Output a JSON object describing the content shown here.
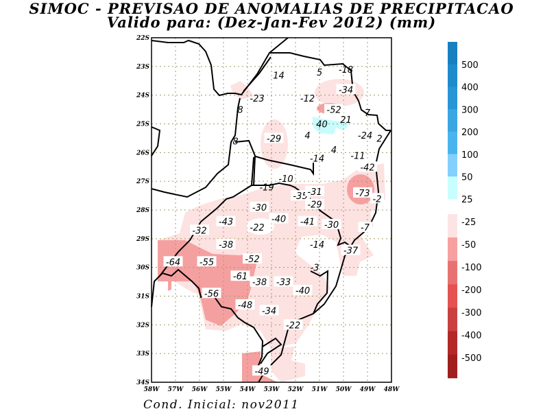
{
  "header": {
    "title": "SIMOC - PREVISAO DE ANOMALIAS DE PRECIPITACAO",
    "subtitle": "Valido para: (Dez-Jan-Fev 2012) (mm)"
  },
  "footer": {
    "initial_condition": "Cond. Inicial: nov2011"
  },
  "map": {
    "lat_ticks": [
      "22S",
      "23S",
      "24S",
      "25S",
      "26S",
      "27S",
      "28S",
      "29S",
      "30S",
      "31S",
      "32S",
      "33S",
      "34S"
    ],
    "lon_ticks": [
      "58W",
      "57W",
      "56W",
      "55W",
      "54W",
      "53W",
      "52W",
      "51W",
      "50W",
      "49W",
      "48W"
    ],
    "extent": {
      "lon": [
        -58,
        -48
      ],
      "lat": [
        -34,
        -22
      ]
    },
    "colors": {
      "light_pink": "#fde2e2",
      "pink": "#f5a0a0",
      "cyan": "#c8fcfc",
      "border": "#000000",
      "grid": "#a09a60"
    },
    "labels": [
      {
        "text": "14",
        "lon": -52.7,
        "lat": -23.3,
        "box": false
      },
      {
        "text": "5",
        "lon": -51.0,
        "lat": -23.2,
        "box": false
      },
      {
        "text": "-18",
        "lon": -49.9,
        "lat": -23.1,
        "box": false
      },
      {
        "text": "-34",
        "lon": -49.9,
        "lat": -23.8,
        "box": true
      },
      {
        "text": "-23",
        "lon": -53.6,
        "lat": -24.1,
        "box": false
      },
      {
        "text": "-12",
        "lon": -51.5,
        "lat": -24.1,
        "box": false
      },
      {
        "text": "-52",
        "lon": -50.4,
        "lat": -24.5,
        "box": true
      },
      {
        "text": "7",
        "lon": -49.0,
        "lat": -24.6,
        "box": false
      },
      {
        "text": "8",
        "lon": -54.3,
        "lat": -24.5,
        "box": false
      },
      {
        "text": "40",
        "lon": -50.9,
        "lat": -25.0,
        "box": false
      },
      {
        "text": "21",
        "lon": -49.9,
        "lat": -24.85,
        "box": false
      },
      {
        "text": "4",
        "lon": -51.5,
        "lat": -25.4,
        "box": false
      },
      {
        "text": "-29",
        "lon": -52.9,
        "lat": -25.5,
        "box": true
      },
      {
        "text": "-24",
        "lon": -49.1,
        "lat": -25.4,
        "box": true
      },
      {
        "text": "2",
        "lon": -48.5,
        "lat": -25.5,
        "box": false
      },
      {
        "text": "8",
        "lon": -54.5,
        "lat": -25.6,
        "box": false
      },
      {
        "text": "-14",
        "lon": -51.1,
        "lat": -26.2,
        "box": false
      },
      {
        "text": "4",
        "lon": -50.4,
        "lat": -25.9,
        "box": false
      },
      {
        "text": "-11",
        "lon": -49.4,
        "lat": -26.1,
        "box": false
      },
      {
        "text": "-42",
        "lon": -49.0,
        "lat": -26.5,
        "box": true
      },
      {
        "text": "-10",
        "lon": -52.4,
        "lat": -26.9,
        "box": false
      },
      {
        "text": "-19",
        "lon": -53.2,
        "lat": -27.2,
        "box": false
      },
      {
        "text": "-35",
        "lon": -51.8,
        "lat": -27.5,
        "box": true
      },
      {
        "text": "-31",
        "lon": -51.2,
        "lat": -27.35,
        "box": true
      },
      {
        "text": "-73",
        "lon": -49.2,
        "lat": -27.4,
        "box": true
      },
      {
        "text": "-2",
        "lon": -48.6,
        "lat": -27.6,
        "box": true
      },
      {
        "text": "-29",
        "lon": -51.2,
        "lat": -27.8,
        "box": true
      },
      {
        "text": "-30",
        "lon": -53.5,
        "lat": -27.9,
        "box": true
      },
      {
        "text": "-43",
        "lon": -54.9,
        "lat": -28.4,
        "box": true
      },
      {
        "text": "-40",
        "lon": -52.7,
        "lat": -28.3,
        "box": true
      },
      {
        "text": "-41",
        "lon": -51.5,
        "lat": -28.4,
        "box": true
      },
      {
        "text": "-30",
        "lon": -50.5,
        "lat": -28.5,
        "box": true
      },
      {
        "text": "-22",
        "lon": -53.6,
        "lat": -28.6,
        "box": true
      },
      {
        "text": "-7",
        "lon": -49.1,
        "lat": -28.6,
        "box": true
      },
      {
        "text": "-32",
        "lon": -56.0,
        "lat": -28.7,
        "box": true
      },
      {
        "text": "-38",
        "lon": -54.9,
        "lat": -29.2,
        "box": true
      },
      {
        "text": "-14",
        "lon": -51.1,
        "lat": -29.2,
        "box": false
      },
      {
        "text": "-37",
        "lon": -49.7,
        "lat": -29.4,
        "box": true
      },
      {
        "text": "-52",
        "lon": -53.8,
        "lat": -29.7,
        "box": true
      },
      {
        "text": "-64",
        "lon": -57.1,
        "lat": -29.8,
        "box": true
      },
      {
        "text": "-55",
        "lon": -55.7,
        "lat": -29.8,
        "box": true
      },
      {
        "text": "-3",
        "lon": -51.2,
        "lat": -30.0,
        "box": false
      },
      {
        "text": "-61",
        "lon": -54.3,
        "lat": -30.3,
        "box": true
      },
      {
        "text": "-38",
        "lon": -53.5,
        "lat": -30.5,
        "box": true
      },
      {
        "text": "-33",
        "lon": -52.5,
        "lat": -30.5,
        "box": true
      },
      {
        "text": "-40",
        "lon": -51.7,
        "lat": -30.8,
        "box": true
      },
      {
        "text": "-56",
        "lon": -55.5,
        "lat": -30.9,
        "box": true
      },
      {
        "text": "-48",
        "lon": -54.1,
        "lat": -31.3,
        "box": true
      },
      {
        "text": "-34",
        "lon": -53.1,
        "lat": -31.5,
        "box": true
      },
      {
        "text": "-22",
        "lon": -52.1,
        "lat": -32.0,
        "box": true
      },
      {
        "text": "-49",
        "lon": -53.4,
        "lat": -33.6,
        "box": true
      }
    ]
  },
  "legend": {
    "positive": {
      "labels": [
        "500",
        "400",
        "300",
        "200",
        "100",
        "50",
        "25"
      ],
      "colors": [
        "#1780c0",
        "#1e8bcc",
        "#2896d6",
        "#3aa6e2",
        "#4ab4ee",
        "#84d0fc",
        "#c8fefe"
      ]
    },
    "negative": {
      "labels": [
        "-25",
        "-50",
        "-100",
        "-200",
        "-300",
        "-400",
        "-500"
      ],
      "colors": [
        "#fde4e4",
        "#f6a0a0",
        "#e87272",
        "#e45252",
        "#ca4040",
        "#b42828",
        "#a01e1e"
      ]
    }
  }
}
